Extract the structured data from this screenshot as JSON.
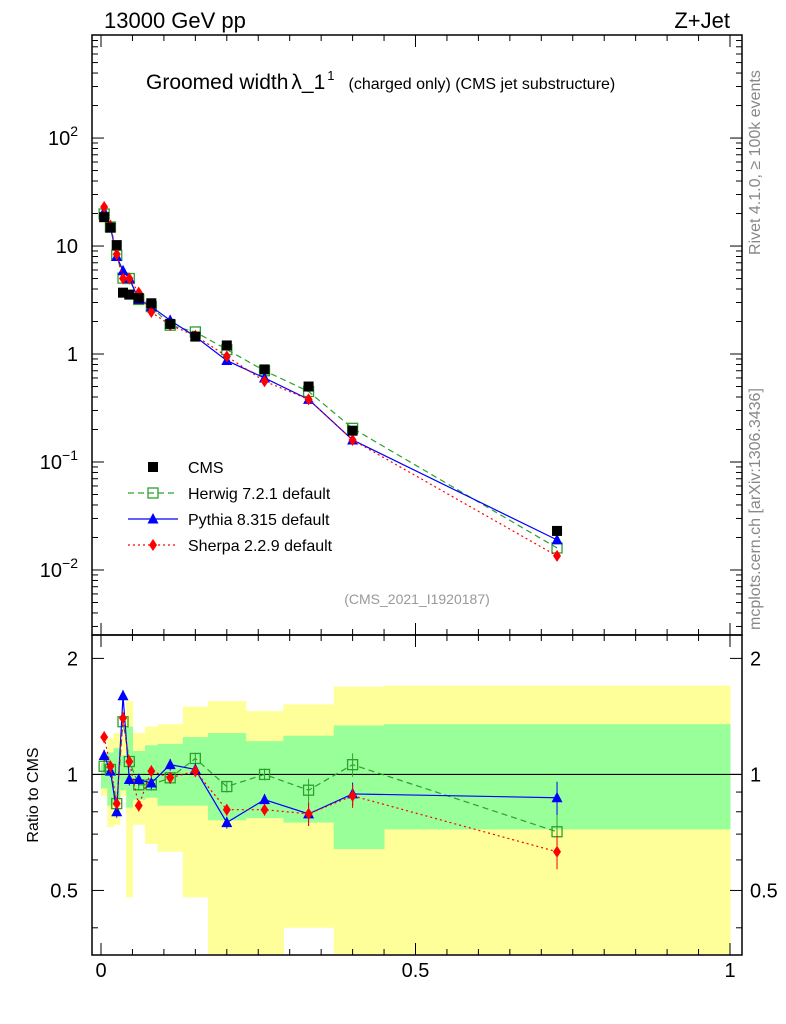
{
  "header": {
    "left": "13000 GeV pp",
    "right": "Z+Jet"
  },
  "side_labels": {
    "rivet": "Rivet 4.1.0, ≥ 100k events",
    "mcplots": "mcplots.cern.ch [arXiv:1306.3436]"
  },
  "title": {
    "main": "Groomed width",
    "lambda": "λ_1",
    "sup": "1",
    "sub": "(charged only) (CMS jet substructure)"
  },
  "watermark": "(CMS_2021_I1920187)",
  "ratio_ylabel": "Ratio to CMS",
  "legend": [
    {
      "name": "CMS",
      "color": "#000000"
    },
    {
      "name": "Herwig 7.2.1 default",
      "color": "#2ca02c"
    },
    {
      "name": "Pythia 8.315 default",
      "color": "#0000ff"
    },
    {
      "name": "Sherpa 2.2.9 default",
      "color": "#ff0000"
    }
  ],
  "chart_data": [
    {
      "type": "scatter",
      "scale": "log",
      "xlim": [
        0,
        1
      ],
      "ylim": [
        0.0025,
        900
      ],
      "ytick_labels": [
        "10^-2",
        "10^-1",
        "1",
        "10",
        "10^2"
      ],
      "series": [
        {
          "name": "CMS",
          "x": [
            0.005,
            0.015,
            0.025,
            0.035,
            0.045,
            0.06,
            0.08,
            0.11,
            0.15,
            0.2,
            0.26,
            0.33,
            0.4,
            0.725
          ],
          "y": [
            18.5,
            14.8,
            10.2,
            3.7,
            3.55,
            3.3,
            2.95,
            1.9,
            1.45,
            1.2,
            0.72,
            0.5,
            0.195,
            0.023
          ]
        },
        {
          "name": "Herwig 7.2.1 default",
          "x": [
            0.005,
            0.015,
            0.025,
            0.035,
            0.045,
            0.06,
            0.08,
            0.11,
            0.15,
            0.2,
            0.26,
            0.33,
            0.4,
            0.725
          ],
          "y": [
            19.8,
            15.0,
            8.2,
            5.05,
            5.0,
            3.2,
            2.75,
            1.85,
            1.6,
            1.1,
            0.7,
            0.45,
            0.205,
            0.016
          ]
        },
        {
          "name": "Pythia 8.315 default",
          "x": [
            0.005,
            0.015,
            0.025,
            0.035,
            0.045,
            0.06,
            0.08,
            0.11,
            0.15,
            0.2,
            0.26,
            0.33,
            0.4,
            0.725
          ],
          "y": [
            20.8,
            15.0,
            8.0,
            5.9,
            5.0,
            3.2,
            2.75,
            2.05,
            1.45,
            0.87,
            0.6,
            0.38,
            0.16,
            0.019
          ]
        },
        {
          "name": "Sherpa 2.2.9 default",
          "x": [
            0.005,
            0.015,
            0.025,
            0.035,
            0.045,
            0.06,
            0.08,
            0.11,
            0.15,
            0.2,
            0.26,
            0.33,
            0.4,
            0.725
          ],
          "y": [
            23.0,
            15.5,
            8.4,
            5.0,
            5.0,
            3.7,
            2.45,
            1.85,
            1.48,
            0.95,
            0.56,
            0.38,
            0.16,
            0.0135
          ]
        }
      ]
    },
    {
      "type": "line",
      "ylabel": "Ratio to CMS",
      "xlim": [
        0,
        1
      ],
      "ylim": [
        0.34,
        2.3
      ],
      "xticks": [
        0,
        0.5,
        1
      ],
      "xtick_labels": [
        "0",
        "0.5",
        "1"
      ],
      "yticks": [
        0.5,
        1,
        2
      ],
      "ytick_labels": [
        "0.5",
        "1",
        "2"
      ],
      "bands": {
        "edges": [
          0.0,
          0.01,
          0.02,
          0.03,
          0.04,
          0.05,
          0.07,
          0.09,
          0.13,
          0.17,
          0.23,
          0.29,
          0.37,
          0.45,
          1.0
        ],
        "yellow_lo": [
          0.88,
          0.73,
          0.74,
          0.88,
          0.48,
          0.74,
          0.66,
          0.63,
          0.48,
          0.34,
          0.34,
          0.4,
          0.34,
          0.34
        ],
        "yellow_hi": [
          1.12,
          1.24,
          1.28,
          1.26,
          1.55,
          1.28,
          1.33,
          1.35,
          1.5,
          1.55,
          1.46,
          1.52,
          1.69,
          1.7
        ],
        "green_lo": [
          0.92,
          0.83,
          0.86,
          0.91,
          0.82,
          0.86,
          0.87,
          0.83,
          0.83,
          0.76,
          0.77,
          0.75,
          0.64,
          0.72
        ],
        "green_hi": [
          1.07,
          1.14,
          1.17,
          1.12,
          1.33,
          1.15,
          1.19,
          1.2,
          1.25,
          1.28,
          1.22,
          1.26,
          1.34,
          1.35
        ]
      },
      "series": [
        {
          "name": "Herwig 7.2.1 default",
          "x": [
            0.005,
            0.015,
            0.025,
            0.035,
            0.045,
            0.06,
            0.08,
            0.11,
            0.15,
            0.2,
            0.26,
            0.33,
            0.4,
            0.725
          ],
          "y": [
            1.05,
            1.03,
            0.84,
            1.37,
            1.08,
            0.94,
            0.94,
            0.98,
            1.1,
            0.93,
            1.0,
            0.91,
            1.06,
            0.71
          ]
        },
        {
          "name": "Pythia 8.315 default",
          "x": [
            0.005,
            0.015,
            0.025,
            0.035,
            0.045,
            0.06,
            0.08,
            0.11,
            0.15,
            0.2,
            0.26,
            0.33,
            0.4,
            0.725
          ],
          "y": [
            1.12,
            1.02,
            0.8,
            1.6,
            0.97,
            0.97,
            0.95,
            1.06,
            1.03,
            0.75,
            0.86,
            0.79,
            0.89,
            0.87
          ]
        },
        {
          "name": "Sherpa 2.2.9 default",
          "x": [
            0.005,
            0.015,
            0.025,
            0.035,
            0.045,
            0.06,
            0.08,
            0.11,
            0.15,
            0.2,
            0.26,
            0.33,
            0.4,
            0.725
          ],
          "y": [
            1.25,
            1.05,
            0.84,
            1.4,
            1.08,
            0.83,
            1.02,
            0.98,
            1.02,
            0.81,
            0.81,
            0.79,
            0.88,
            0.63
          ]
        }
      ]
    }
  ]
}
